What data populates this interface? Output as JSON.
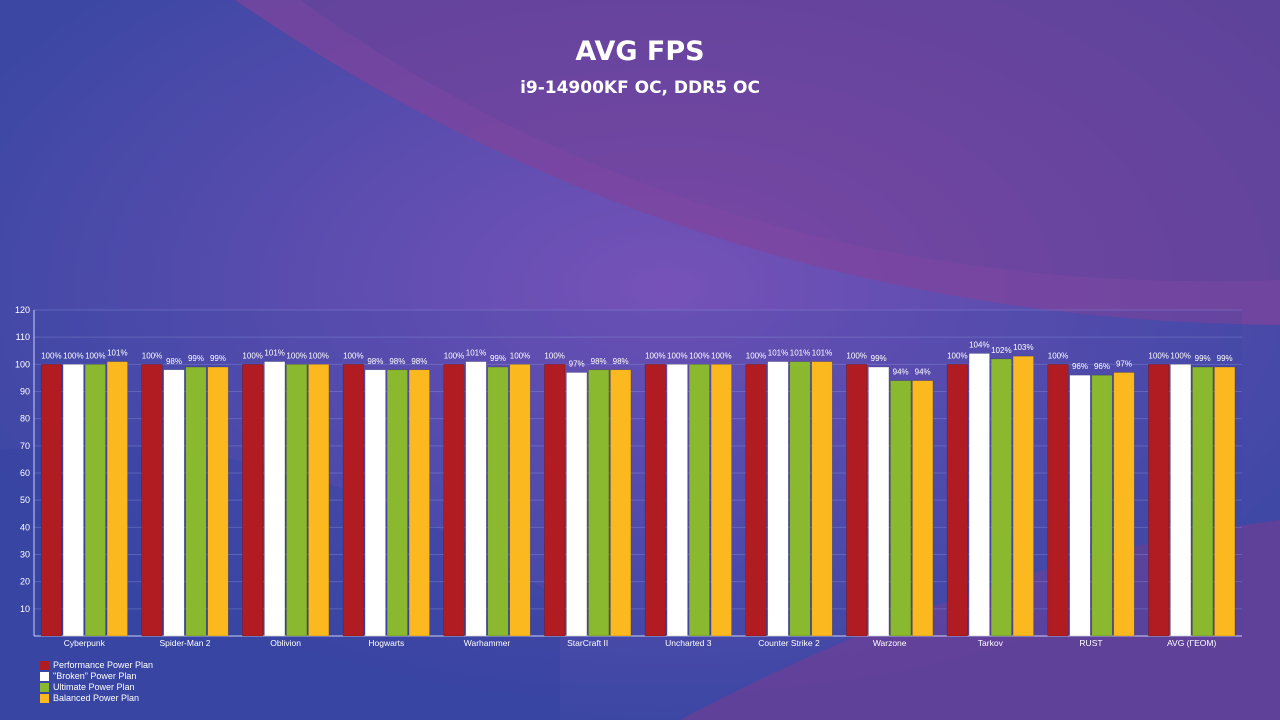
{
  "title": "AVG FPS",
  "subtitle": "i9-14900KF OC, DDR5 OC",
  "colors": {
    "background": "#3e4aa6",
    "accent_pink": "#8a3a8e",
    "axis": "#9aa4e0"
  },
  "chart_data": {
    "type": "bar",
    "title": "AVG FPS",
    "subtitle": "i9-14900KF OC, DDR5 OC",
    "categories": [
      "Cyberpunk",
      "Spider-Man 2",
      "Oblivion",
      "Hogwarts",
      "Warhammer",
      "StarCraft II",
      "Uncharted 3",
      "Counter Strike 2",
      "Warzone",
      "Tarkov",
      "RUST",
      "AVG (ГЕОМ)"
    ],
    "ylim": [
      0,
      120
    ],
    "yticks": [
      10,
      20,
      30,
      40,
      50,
      60,
      70,
      80,
      90,
      100,
      110,
      120
    ],
    "grid": true,
    "legend_position": "bottom-left",
    "series": [
      {
        "name": "Performance Power Plan",
        "color": "#b01c22",
        "values": [
          100,
          100,
          100,
          100,
          100,
          100,
          100,
          100,
          100,
          100,
          100,
          100
        ],
        "labels": [
          "100%",
          "100%",
          "100%",
          "100%",
          "100%",
          "100%",
          "100%",
          "100%",
          "100%",
          "100%",
          "100%",
          "100%"
        ]
      },
      {
        "name": "\"Broken\" Power Plan",
        "color": "#ffffff",
        "values": [
          100,
          98,
          101,
          98,
          101,
          97,
          100,
          101,
          99,
          104,
          96,
          100
        ],
        "labels": [
          "100%",
          "98%",
          "101%",
          "98%",
          "101%",
          "97%",
          "100%",
          "101%",
          "99%",
          "104%",
          "96%",
          "100%"
        ]
      },
      {
        "name": "Ultimate Power Plan",
        "color": "#8ab82e",
        "values": [
          100,
          99,
          100,
          98,
          99,
          98,
          100,
          101,
          94,
          102,
          96,
          99
        ],
        "labels": [
          "100%",
          "99%",
          "100%",
          "98%",
          "99%",
          "98%",
          "100%",
          "101%",
          "94%",
          "102%",
          "96%",
          "99%"
        ]
      },
      {
        "name": "Balanced Power Plan",
        "color": "#fcb91f",
        "values": [
          101,
          99,
          100,
          98,
          100,
          98,
          100,
          101,
          94,
          103,
          97,
          99
        ],
        "labels": [
          "101%",
          "99%",
          "100%",
          "98%",
          "100%",
          "98%",
          "100%",
          "101%",
          "94%",
          "103%",
          "97%",
          "99%"
        ]
      }
    ]
  }
}
